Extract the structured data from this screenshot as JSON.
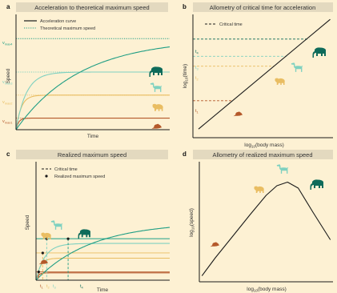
{
  "colors": {
    "background": "#fdf1d3",
    "panel_title_bg": "#e3d9bf",
    "axis": "#1a1a1a",
    "teal": "#1f9e84",
    "light_teal": "#7fd1c0",
    "tan": "#e9bd62",
    "brown": "#b4582a",
    "dark_green": "#0e6b5a"
  },
  "icons": [
    "elephant-icon",
    "giraffe-icon",
    "bear-icon",
    "mouse-icon"
  ],
  "panels": [
    {
      "letter": "a",
      "title": "Acceleration to theoretical maximum speed",
      "xlabel": "Time",
      "ylabel": "Speed",
      "legend": [
        "Acceleration curve",
        "Theoretical maximum speed"
      ],
      "levels": [
        "v",
        "v",
        "v",
        "v"
      ],
      "level_subs": [
        "max4",
        "max3",
        "max2",
        "max1"
      ]
    },
    {
      "letter": "b",
      "title": "Allometry of critical time for acceleration",
      "xlabel": "log",
      "xlabel_sub": "10",
      "xlabel_rest": "(body mass)",
      "ylabel": "log",
      "ylabel_sub": "10",
      "ylabel_rest": "(time)",
      "legend": [
        "Critical time"
      ],
      "levels": [
        "t",
        "t",
        "t",
        "t"
      ],
      "level_subs": [
        "4",
        "3",
        "2",
        "1"
      ]
    },
    {
      "letter": "c",
      "title": "Realized maximum speed",
      "xlabel": "Time",
      "ylabel": "Speed",
      "legend": [
        "Critical time",
        "Realized maximum speed"
      ],
      "ticks": [
        "t",
        "t",
        "t",
        "t"
      ],
      "tick_subs": [
        "1",
        "2",
        "3",
        "4"
      ]
    },
    {
      "letter": "d",
      "title": "Allometry of realized maximum speed",
      "xlabel": "log",
      "xlabel_sub": "10",
      "xlabel_rest": "(body mass)",
      "ylabel": "log",
      "ylabel_sub": "10",
      "ylabel_rest": "(speed)"
    }
  ],
  "chart_data": [
    {
      "type": "line",
      "title": "Acceleration to theoretical maximum speed",
      "xlabel": "Time",
      "ylabel": "Speed",
      "x_range": [
        0,
        1
      ],
      "y_range": [
        0,
        1
      ],
      "grid": false,
      "legend_position": "top-left",
      "series": [
        {
          "name": "Acceleration curve",
          "animal": "mouse",
          "vmax": 0.1,
          "k": 60,
          "color": "#b4582a"
        },
        {
          "name": "Acceleration curve",
          "animal": "bear",
          "vmax": 0.3,
          "k": 30,
          "color": "#e9bd62"
        },
        {
          "name": "Acceleration curve",
          "animal": "giraffe",
          "vmax": 0.5,
          "k": 15,
          "color": "#7fd1c0"
        },
        {
          "name": "Acceleration curve",
          "animal": "elephant",
          "vmax": 0.79,
          "k": 2.4,
          "color": "#1f9e84"
        }
      ],
      "theoretical_max": [
        0.1,
        0.3,
        0.5,
        0.79
      ]
    },
    {
      "type": "line",
      "title": "Allometry of critical time for acceleration",
      "xlabel": "log10(body mass)",
      "ylabel": "log10(time)",
      "x_range": [
        0,
        1
      ],
      "y_range": [
        0,
        1
      ],
      "legend_position": "top-left",
      "line": {
        "x": [
          0.04,
          0.98
        ],
        "y": [
          0.07,
          0.96
        ]
      },
      "critical_times": [
        {
          "animal": "mouse",
          "x": 0.28,
          "y": 0.3,
          "color": "#b4582a"
        },
        {
          "animal": "bear",
          "x": 0.58,
          "y": 0.58,
          "color": "#e9bd62"
        },
        {
          "animal": "giraffe",
          "x": 0.67,
          "y": 0.66,
          "color": "#7fd1c0"
        },
        {
          "animal": "elephant",
          "x": 0.83,
          "y": 0.8,
          "color": "#0e6b5a"
        }
      ]
    },
    {
      "type": "line",
      "title": "Realized maximum speed",
      "xlabel": "Time",
      "ylabel": "Speed",
      "x_range": [
        0,
        1
      ],
      "y_range": [
        0,
        1
      ],
      "legend_position": "top-left",
      "series": [
        {
          "animal": "mouse",
          "vmax": 0.1,
          "k": 60,
          "color": "#b4582a"
        },
        {
          "animal": "bear",
          "vmax": 0.3,
          "k": 30,
          "color": "#e9bd62"
        },
        {
          "animal": "giraffe",
          "vmax": 0.5,
          "k": 15,
          "color": "#7fd1c0"
        },
        {
          "animal": "elephant",
          "vmax": 0.79,
          "k": 2.4,
          "color": "#1f9e84"
        }
      ],
      "critical_times": [
        0.02,
        0.05,
        0.08,
        0.24
      ],
      "realized_max": [
        {
          "animal": "mouse",
          "t": 0.02,
          "v": 0.07
        },
        {
          "animal": "bear",
          "t": 0.05,
          "v": 0.23
        },
        {
          "animal": "giraffe",
          "t": 0.08,
          "v": 0.35
        },
        {
          "animal": "elephant",
          "t": 0.24,
          "v": 0.35
        }
      ]
    },
    {
      "type": "line",
      "title": "Allometry of realized maximum speed",
      "xlabel": "log10(body mass)",
      "ylabel": "log10(speed)",
      "x_range": [
        0,
        1
      ],
      "y_range": [
        0,
        1
      ],
      "curve": {
        "x": [
          0.02,
          0.12,
          0.25,
          0.38,
          0.5,
          0.58,
          0.66,
          0.74,
          0.85,
          0.98
        ],
        "y": [
          0.05,
          0.2,
          0.38,
          0.56,
          0.72,
          0.8,
          0.83,
          0.78,
          0.58,
          0.35
        ]
      },
      "animals": [
        {
          "animal": "mouse",
          "x": 0.17,
          "y": 0.27
        },
        {
          "animal": "bear",
          "x": 0.48,
          "y": 0.7
        },
        {
          "animal": "giraffe",
          "x": 0.67,
          "y": 0.88
        },
        {
          "animal": "elephant",
          "x": 0.85,
          "y": 0.72
        }
      ]
    }
  ]
}
